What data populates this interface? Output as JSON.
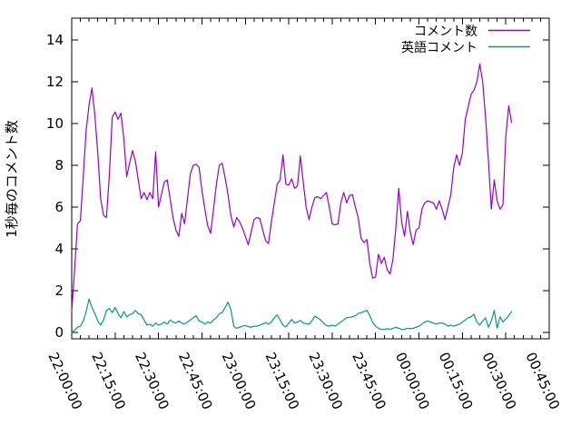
{
  "chart_data": {
    "type": "line",
    "title": "",
    "ylabel": "1秒毎のコメント数",
    "xlabel": "",
    "legend_position": "top-right-inside",
    "grid": false,
    "background_color": "#ffffff",
    "axis_color": "#000000",
    "y_ticks": [
      0,
      2,
      4,
      6,
      8,
      10,
      12,
      14
    ],
    "y_tick_labels": [
      "0",
      "2",
      "4",
      "6",
      "8",
      "10",
      "12",
      "14"
    ],
    "y_range": [
      0,
      14
    ],
    "x_tick_labels": [
      "22:00:00",
      "22:15:00",
      "22:30:00",
      "22:45:00",
      "23:00:00",
      "23:15:00",
      "23:30:00",
      "23:45:00",
      "00:00:00",
      "00:15:00",
      "00:30:00",
      "00:45:00"
    ],
    "x_tick_interval_minutes": 15,
    "x_minor_tick_interval_minutes": 3,
    "x_range_minutes": [
      0,
      165
    ],
    "series": [
      {
        "name": "コメント数",
        "role": "comments",
        "color": "#9400D3",
        "x_start": "22:00:00",
        "x_step_minutes": 1,
        "values": [
          1.0,
          3.0,
          5.2,
          5.35,
          7.5,
          9.7,
          10.9,
          11.7,
          10.4,
          8.6,
          6.4,
          5.6,
          5.5,
          7.5,
          10.3,
          10.55,
          10.2,
          10.5,
          9.3,
          7.45,
          8.1,
          8.7,
          8.2,
          7.3,
          6.4,
          6.7,
          6.35,
          6.7,
          6.4,
          8.65,
          6.0,
          6.6,
          7.2,
          7.3,
          6.4,
          5.5,
          4.9,
          4.6,
          5.7,
          5.2,
          6.4,
          7.6,
          8.0,
          8.05,
          7.9,
          6.8,
          5.9,
          5.1,
          4.75,
          5.9,
          7.1,
          8.0,
          8.1,
          7.4,
          6.6,
          5.6,
          5.05,
          5.5,
          5.3,
          5.0,
          4.6,
          4.2,
          4.8,
          5.4,
          5.5,
          5.45,
          4.9,
          4.4,
          4.25,
          5.3,
          6.2,
          7.1,
          7.3,
          8.5,
          7.1,
          7.05,
          7.35,
          6.9,
          7.0,
          8.45,
          7.2,
          6.0,
          5.4,
          6.0,
          6.45,
          6.5,
          6.4,
          6.55,
          6.7,
          6.0,
          5.2,
          5.15,
          5.2,
          6.2,
          6.7,
          6.2,
          6.55,
          6.6,
          6.0,
          5.5,
          4.5,
          4.3,
          4.45,
          3.3,
          2.6,
          2.65,
          3.74,
          3.3,
          3.6,
          3.0,
          2.8,
          3.5,
          5.0,
          6.9,
          5.3,
          4.6,
          5.8,
          4.8,
          4.2,
          4.9,
          5.0,
          5.9,
          6.2,
          6.3,
          6.25,
          6.2,
          5.9,
          6.3,
          5.9,
          5.4,
          6.0,
          6.6,
          7.9,
          8.5,
          8.0,
          8.6,
          10.2,
          10.8,
          11.4,
          11.6,
          12.0,
          12.85,
          12.0,
          10.3,
          8.2,
          5.9,
          7.3,
          6.3,
          5.9,
          6.1,
          9.4,
          10.85,
          10.05
        ]
      },
      {
        "name": "英語コメント",
        "role": "english-comments",
        "color": "#009E73",
        "x_start": "22:00:00",
        "x_step_minutes": 1,
        "values": [
          0.0,
          0.1,
          0.25,
          0.3,
          0.55,
          1.0,
          1.6,
          1.2,
          0.9,
          0.55,
          0.35,
          0.6,
          1.05,
          1.15,
          0.95,
          1.2,
          0.9,
          0.7,
          1.0,
          0.75,
          0.85,
          0.9,
          1.05,
          0.9,
          0.85,
          0.6,
          0.35,
          0.4,
          0.3,
          0.45,
          0.35,
          0.4,
          0.5,
          0.4,
          0.6,
          0.5,
          0.45,
          0.55,
          0.45,
          0.4,
          0.5,
          0.6,
          0.7,
          0.8,
          0.55,
          0.5,
          0.4,
          0.5,
          0.45,
          0.6,
          0.7,
          0.9,
          0.95,
          1.2,
          1.45,
          1.1,
          0.3,
          0.2,
          0.25,
          0.3,
          0.33,
          0.28,
          0.25,
          0.3,
          0.3,
          0.35,
          0.4,
          0.48,
          0.4,
          0.5,
          0.7,
          0.84,
          0.6,
          0.35,
          0.26,
          0.45,
          0.62,
          0.45,
          0.5,
          0.57,
          0.45,
          0.42,
          0.4,
          0.55,
          0.78,
          0.7,
          0.6,
          0.45,
          0.33,
          0.3,
          0.35,
          0.3,
          0.4,
          0.5,
          0.6,
          0.7,
          0.72,
          0.75,
          0.8,
          0.91,
          0.95,
          1.0,
          1.06,
          0.8,
          0.48,
          0.3,
          0.2,
          0.15,
          0.15,
          0.18,
          0.15,
          0.2,
          0.25,
          0.2,
          0.15,
          0.15,
          0.2,
          0.18,
          0.2,
          0.25,
          0.3,
          0.4,
          0.5,
          0.55,
          0.5,
          0.45,
          0.4,
          0.45,
          0.45,
          0.4,
          0.3,
          0.35,
          0.3,
          0.35,
          0.4,
          0.5,
          0.6,
          0.7,
          0.75,
          0.87,
          0.5,
          0.35,
          0.55,
          0.7,
          0.25,
          0.55,
          1.06,
          0.2,
          0.75,
          0.5,
          0.65,
          0.8,
          1.0
        ]
      }
    ]
  }
}
